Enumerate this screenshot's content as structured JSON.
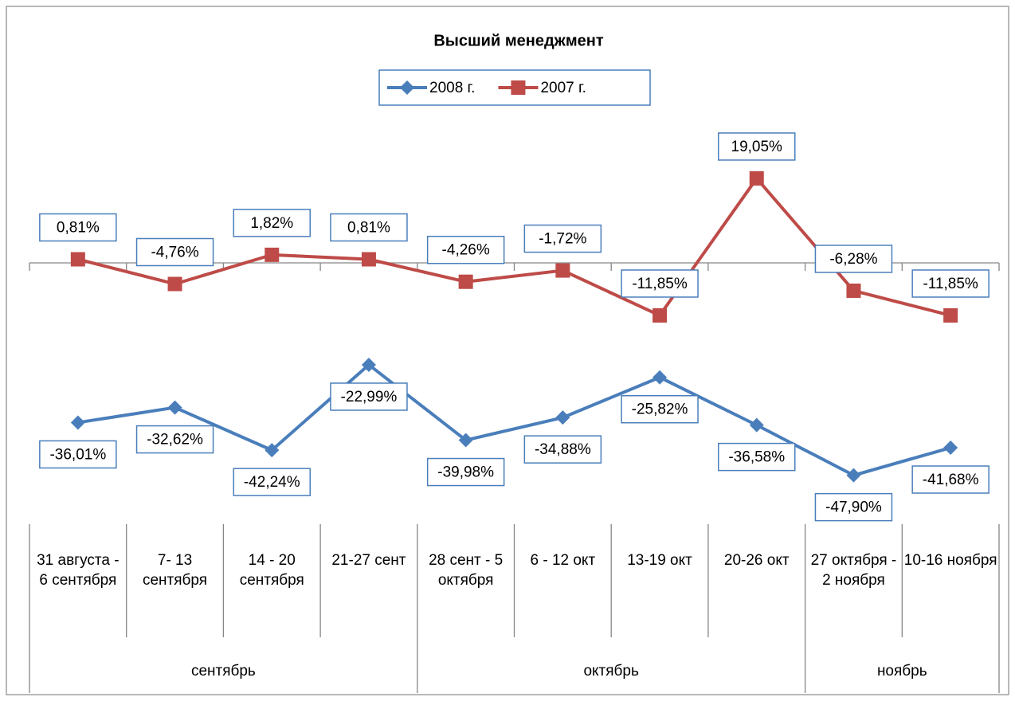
{
  "chart_data": {
    "type": "line",
    "title": "Высший менеджмент",
    "categories": [
      "31 августа - 6 сентября",
      "7- 13 сентября",
      "14 - 20 сентября",
      "21-27 сент",
      "28 сент - 5 октября",
      "6 - 12 окт",
      "13-19 окт",
      "20-26 окт",
      "27 октября - 2 ноября",
      "10-16 ноября"
    ],
    "groups": [
      "сентябрь",
      null,
      null,
      null,
      "октябрь",
      null,
      null,
      null,
      "ноябрь",
      null
    ],
    "ylim": [
      -60,
      30
    ],
    "series": [
      {
        "name": "2008 г.",
        "color": "#4a7ebb",
        "marker": "diamond",
        "values": [
          -36.01,
          -32.62,
          -42.24,
          -22.99,
          -39.98,
          -34.88,
          -25.82,
          -36.58,
          -47.9,
          -41.68
        ],
        "value_labels": [
          "-36,01%",
          "-32,62%",
          "-42,24%",
          "-22,99%",
          "-39,98%",
          "-34,88%",
          "-25,82%",
          "-36,58%",
          "-47,90%",
          "-41,68%"
        ]
      },
      {
        "name": "2007 г.",
        "color": "#be4b48",
        "marker": "square",
        "values": [
          0.81,
          -4.76,
          1.82,
          0.81,
          -4.26,
          -1.72,
          -11.85,
          19.05,
          -6.28,
          -11.85
        ],
        "value_labels": [
          "0,81%",
          "-4,76%",
          "1,82%",
          "0,81%",
          "-4,26%",
          "-1,72%",
          "-11,85%",
          "19,05%",
          "-6,28%",
          "-11,85%"
        ]
      }
    ]
  }
}
